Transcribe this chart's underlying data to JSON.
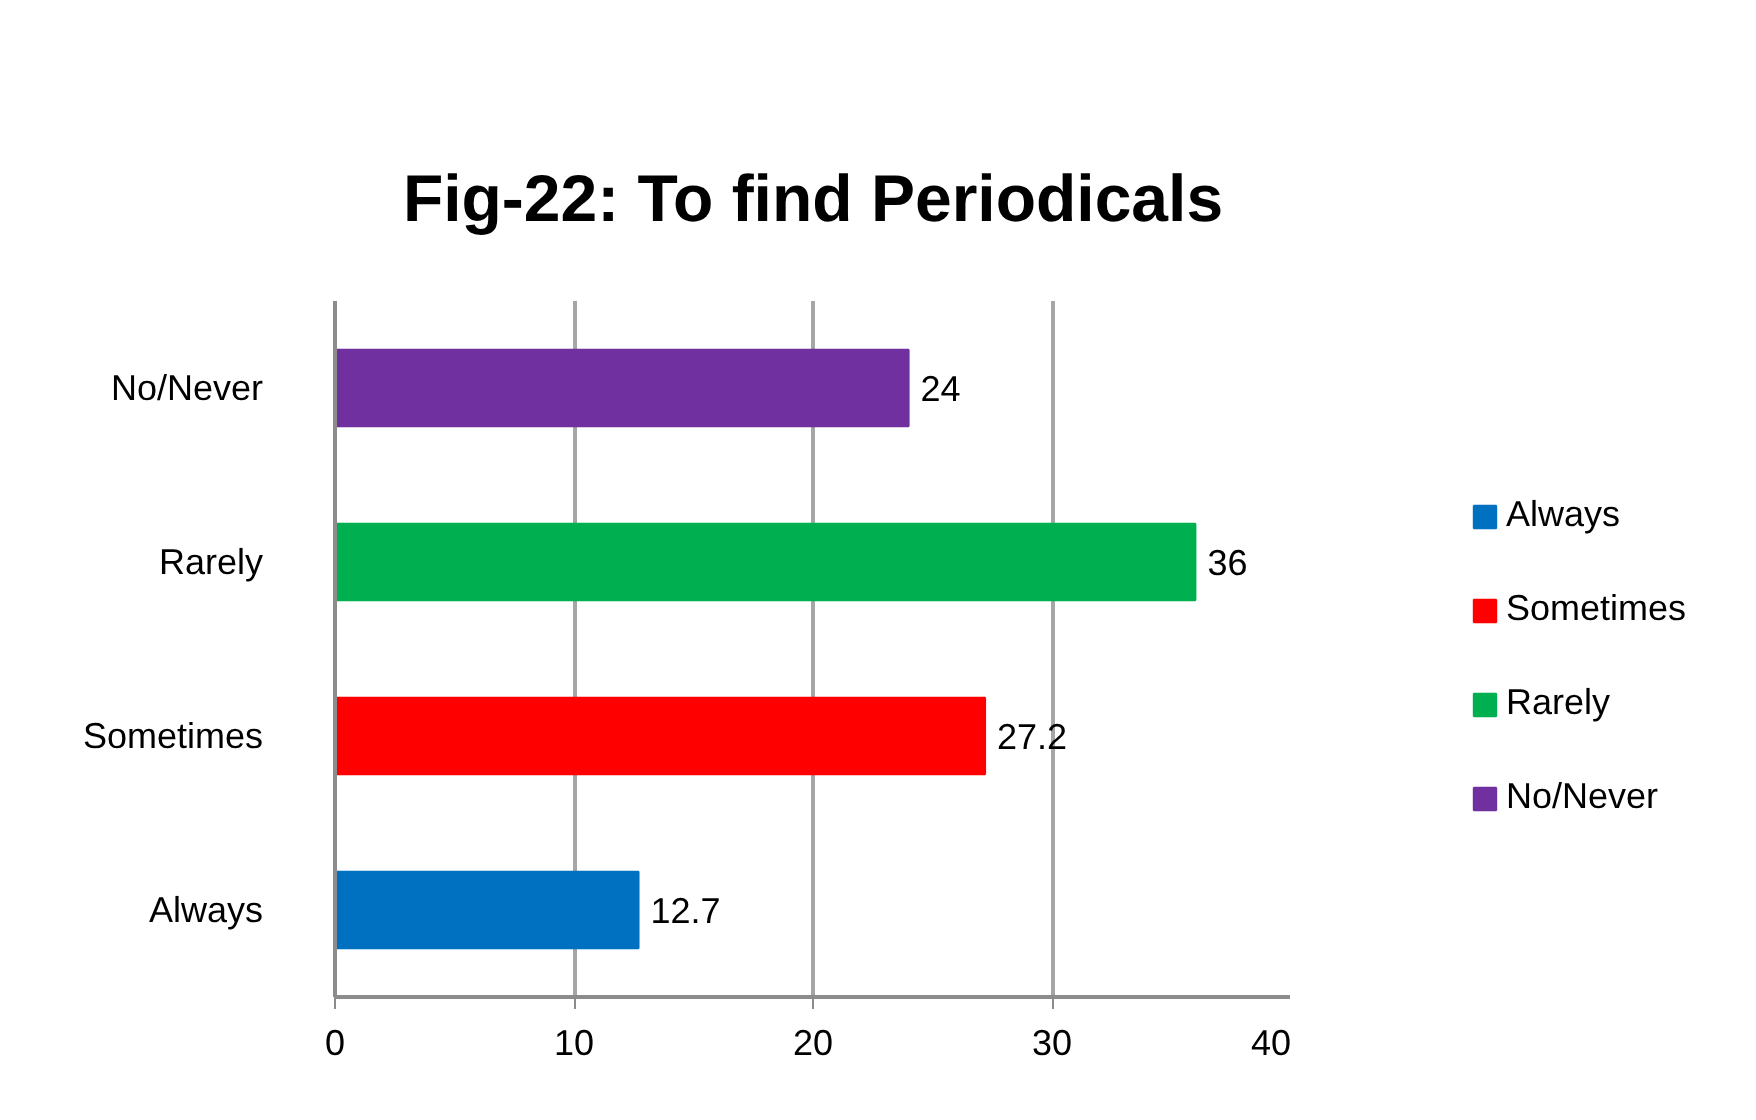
{
  "chart_data": {
    "type": "bar",
    "title": "Fig-22: To find Periodicals",
    "orientation": "horizontal",
    "categories": [
      "No/Never",
      "Rarely",
      "Sometimes",
      "Always"
    ],
    "series": [
      {
        "name": "Always",
        "color": "#0070c0",
        "values": [
          null,
          null,
          null,
          12.7
        ]
      },
      {
        "name": "Sometimes",
        "color": "#ff0000",
        "values": [
          null,
          null,
          27.2,
          null
        ]
      },
      {
        "name": "Rarely",
        "color": "#00b050",
        "values": [
          null,
          36,
          null,
          null
        ]
      },
      {
        "name": "No/Never",
        "color": "#7030a0",
        "values": [
          24,
          null,
          null,
          null
        ]
      }
    ],
    "xlim": [
      0,
      40
    ],
    "xticks": [
      0,
      10,
      20,
      30,
      40
    ],
    "grid": "x",
    "legend": "right",
    "data_labels": true
  }
}
